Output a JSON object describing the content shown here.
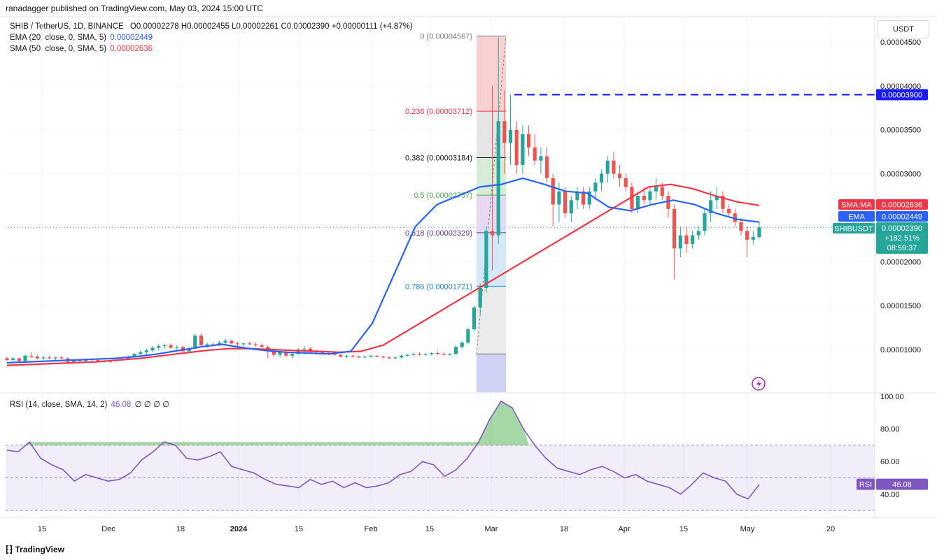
{
  "header": {
    "published": "ranadagger published on TradingView.com, May 03, 2024 15:00 UTC"
  },
  "legend": {
    "symbol": "SHIB / TetherUS, 1D, BINANCE",
    "ohlc": "O0.00002278 H0.00002455 L0.00002261 C0.00002390 +0.00000111 (+4.87%)",
    "ema_label": "EMA (20, close, 0, SMA, 5)",
    "ema_value": "0.00002449",
    "sma_label": "SMA (50, close, 0, SMA, 5)",
    "sma_value": "0.00002636",
    "rsi_label": "RSI (14, close, SMA, 14, 2)",
    "rsi_value": "46.08",
    "rsi_extra": "∅ ∅ ∅ ∅"
  },
  "currency": "USDT",
  "colors": {
    "up": "#26a69a",
    "down": "#ef5350",
    "ema": "#2962ff",
    "sma": "#f23645",
    "rsi": "#7e57c2",
    "resistance": "#1a1aff"
  },
  "price_axis": [
    "0.00004500",
    "0.00004000",
    "0.00003500",
    "0.00003000",
    "0.00002000",
    "0.00001500",
    "0.00001000"
  ],
  "badges": {
    "resistance": "0.00003900",
    "sma_tag": "SMA:MA",
    "sma_val": "0.00002636",
    "ema_tag": "EMA",
    "ema_val": "0.00002449",
    "sym_tag": "SHIBUSDT",
    "sym_val": "0.00002390",
    "sym_change": "+182.51%",
    "sym_time": "08:59:37"
  },
  "fib_levels": [
    {
      "ratio": "0",
      "price": "0.00004567",
      "label": "0 (0.00004567)",
      "color": "#787b86"
    },
    {
      "ratio": "0.236",
      "price": "0.00003712",
      "label": "0.236 (0.00003712)",
      "color": "#f23645"
    },
    {
      "ratio": "0.382",
      "price": "0.00003184",
      "label": "0.382 (0.00003184)",
      "color": "#131722"
    },
    {
      "ratio": "0.5",
      "price": "0.00002757",
      "label": "0.5 (0.00002757)",
      "color": "#4caf50"
    },
    {
      "ratio": "0.618",
      "price": "0.00002329",
      "label": "0.618 (0.00002329)",
      "color": "#5d3a9b"
    },
    {
      "ratio": "0.786",
      "price": "0.00001721",
      "label": "0.786 (0.00001721)",
      "color": "#1e88e5"
    }
  ],
  "rsi_axis": [
    "100.00",
    "80.00",
    "60.00",
    "40.00"
  ],
  "rsi_badge": {
    "tag": "RSI",
    "val": "46.08"
  },
  "x_axis": [
    "15",
    "Dec",
    "18",
    "2024",
    "15",
    "Feb",
    "15",
    "Mar",
    "18",
    "Apr",
    "15",
    "May",
    "20"
  ],
  "footer": {
    "brand": "TradingView"
  },
  "chart_data": {
    "type": "candlestick",
    "title": "SHIB / TetherUS, 1D, BINANCE",
    "y_unit": "USDT",
    "ylim": [
      7.5e-06,
      4.65e-05
    ],
    "candles": [
      [
        9e-06,
        9.2e-06,
        8.7e-06,
        8.8e-06
      ],
      [
        8.8e-06,
        9.2e-06,
        8.7e-06,
        9e-06
      ],
      [
        9e-06,
        9.1e-06,
        8.6e-06,
        8.7e-06
      ],
      [
        8.7e-06,
        9.5e-06,
        8.6e-06,
        9.3e-06
      ],
      [
        9.3e-06,
        9.7e-06,
        9e-06,
        9.2e-06
      ],
      [
        9.2e-06,
        9.4e-06,
        8.9e-06,
        9e-06
      ],
      [
        9e-06,
        9.3e-06,
        8.8e-06,
        9.1e-06
      ],
      [
        9.1e-06,
        9.3e-06,
        8.9e-06,
        9e-06
      ],
      [
        9e-06,
        9.2e-06,
        8.8e-06,
        9.1e-06
      ],
      [
        9.1e-06,
        9.3e-06,
        8.9e-06,
        9e-06
      ],
      [
        9e-06,
        9.1e-06,
        8.5e-06,
        8.6e-06
      ],
      [
        8.6e-06,
        8.9e-06,
        8.5e-06,
        8.8e-06
      ],
      [
        8.8e-06,
        8.9e-06,
        8.6e-06,
        8.7e-06
      ],
      [
        8.7e-06,
        9e-06,
        8.6e-06,
        8.9e-06
      ],
      [
        8.9e-06,
        9e-06,
        8.7e-06,
        8.8e-06
      ],
      [
        8.8e-06,
        8.9e-06,
        8.6e-06,
        8.7e-06
      ],
      [
        8.7e-06,
        8.8e-06,
        8.5e-06,
        8.6e-06
      ],
      [
        8.6e-06,
        8.8e-06,
        8.5e-06,
        8.7e-06
      ],
      [
        8.7e-06,
        8.9e-06,
        8.6e-06,
        8.8e-06
      ],
      [
        8.8e-06,
        9e-06,
        8.7e-06,
        8.9e-06
      ],
      [
        8.9e-06,
        9.3e-06,
        8.8e-06,
        9.2e-06
      ],
      [
        9.2e-06,
        9.6e-06,
        9.1e-06,
        9.5e-06
      ],
      [
        9.5e-06,
        9.9e-06,
        9.3e-06,
        9.7e-06
      ],
      [
        9.7e-06,
        1.01e-05,
        9.5e-06,
        9.9e-06
      ],
      [
        9.9e-06,
        1.04e-05,
        9.7e-06,
        1.02e-05
      ],
      [
        1.02e-05,
        1.06e-05,
        9.9e-06,
        1.04e-05
      ],
      [
        1.04e-05,
        1.06e-05,
        1.01e-05,
        1.05e-05
      ],
      [
        1.05e-05,
        1.07e-05,
        1.01e-05,
        1.02e-05
      ],
      [
        1.02e-05,
        1.05e-05,
        9.9e-06,
        1.03e-05
      ],
      [
        1.03e-05,
        1.05e-05,
        9.7e-06,
        9.8e-06
      ],
      [
        9.8e-06,
        1.02e-05,
        9.7e-06,
        1.01e-05
      ],
      [
        1.01e-05,
        1.18e-05,
        1e-05,
        1.16e-05
      ],
      [
        1.16e-05,
        1.19e-05,
        1.03e-05,
        1.05e-05
      ],
      [
        1.05e-05,
        1.08e-05,
        1.02e-05,
        1.06e-05
      ],
      [
        1.06e-05,
        1.08e-05,
        1.03e-05,
        1.05e-05
      ],
      [
        1.05e-05,
        1.1e-05,
        1.04e-05,
        1.08e-05
      ],
      [
        1.08e-05,
        1.12e-05,
        1.06e-05,
        1.1e-05
      ],
      [
        1.1e-05,
        1.11e-05,
        1.06e-05,
        1.07e-05
      ],
      [
        1.07e-05,
        1.09e-05,
        1.04e-05,
        1.06e-05
      ],
      [
        1.06e-05,
        1.08e-05,
        1.03e-05,
        1.07e-05
      ],
      [
        1.07e-05,
        1.09e-05,
        1.05e-05,
        1.06e-05
      ],
      [
        1.06e-05,
        1.08e-05,
        1.03e-05,
        1.05e-05
      ],
      [
        1.05e-05,
        1.07e-05,
        1.02e-05,
        1.03e-05
      ],
      [
        1.03e-05,
        1.05e-05,
        9e-06,
        9.8e-06
      ],
      [
        9.8e-06,
        1e-05,
        9.2e-06,
        9.4e-06
      ],
      [
        9.4e-06,
        9.8e-06,
        9.1e-06,
        9.7e-06
      ],
      [
        9.7e-06,
        9.9e-06,
        9.2e-06,
        9.3e-06
      ],
      [
        9.3e-06,
        9.6e-06,
        9e-06,
        9.5e-06
      ],
      [
        9.5e-06,
        1.02e-05,
        9.4e-06,
        1e-05
      ],
      [
        1e-05,
        1.04e-05,
        9.7e-06,
        1.01e-05
      ],
      [
        1.01e-05,
        1.03e-05,
        9.6e-06,
        9.8e-06
      ],
      [
        9.8e-06,
        1e-05,
        9.6e-06,
        9.7e-06
      ],
      [
        9.7e-06,
        9.9e-06,
        9.4e-06,
        9.6e-06
      ],
      [
        9.6e-06,
        9.8e-06,
        9.4e-06,
        9.5e-06
      ],
      [
        9.5e-06,
        9.7e-06,
        9.3e-06,
        9.4e-06
      ],
      [
        9.4e-06,
        9.5e-06,
        9.1e-06,
        9.2e-06
      ],
      [
        9.2e-06,
        9.4e-06,
        9e-06,
        9.3e-06
      ],
      [
        9.3e-06,
        9.4e-06,
        9.1e-06,
        9.2e-06
      ],
      [
        9.2e-06,
        9.3e-06,
        9e-06,
        9.1e-06
      ],
      [
        9.1e-06,
        9.3e-06,
        9e-06,
        9.2e-06
      ],
      [
        9.2e-06,
        9.4e-06,
        9.1e-06,
        9.3e-06
      ],
      [
        9.3e-06,
        9.4e-06,
        9.1e-06,
        9.2e-06
      ],
      [
        9.2e-06,
        9.3e-06,
        9e-06,
        9.1e-06
      ],
      [
        9.1e-06,
        9.2e-06,
        8.9e-06,
        9e-06
      ],
      [
        9e-06,
        9.2e-06,
        8.9e-06,
        9.1e-06
      ],
      [
        9.1e-06,
        9.4e-06,
        9e-06,
        9.3e-06
      ],
      [
        9.3e-06,
        9.5e-06,
        9.2e-06,
        9.4e-06
      ],
      [
        9.4e-06,
        9.6e-06,
        9.3e-06,
        9.5e-06
      ],
      [
        9.5e-06,
        9.7e-06,
        9.3e-06,
        9.4e-06
      ],
      [
        9.4e-06,
        9.6e-06,
        9.3e-06,
        9.5e-06
      ],
      [
        9.5e-06,
        9.7e-06,
        9.3e-06,
        9.6e-06
      ],
      [
        9.6e-06,
        9.8e-06,
        9.4e-06,
        9.5e-06
      ],
      [
        9.5e-06,
        9.7e-06,
        9.3e-06,
        9.4e-06
      ],
      [
        9.4e-06,
        9.6e-06,
        9.3e-06,
        9.5e-06
      ],
      [
        9.5e-06,
        1.05e-05,
        9.4e-06,
        1.03e-05
      ],
      [
        1.03e-05,
        1.1e-05,
        1.01e-05,
        1.08e-05
      ],
      [
        1.08e-05,
        1.25e-05,
        1.06e-05,
        1.23e-05
      ],
      [
        1.23e-05,
        1.5e-05,
        1.2e-05,
        1.48e-05
      ],
      [
        1.48e-05,
        1.75e-05,
        1.4e-05,
        1.7e-05
      ],
      [
        1.7e-05,
        2.4e-05,
        1.65e-05,
        2.35e-05
      ],
      [
        2.35e-05,
        4e-05,
        1.9e-05,
        2.3e-05
      ],
      [
        2.3e-05,
        4.55e-05,
        2.2e-05,
        3.6e-05
      ],
      [
        3.6e-05,
        3.95e-05,
        3e-05,
        3.35e-05
      ],
      [
        3.35e-05,
        3.9e-05,
        3.1e-05,
        3.5e-05
      ],
      [
        3.5e-05,
        3.6e-05,
        3e-05,
        3.1e-05
      ],
      [
        3.1e-05,
        3.55e-05,
        3e-05,
        3.45e-05
      ],
      [
        3.45e-05,
        3.55e-05,
        3.2e-05,
        3.3e-05
      ],
      [
        3.3e-05,
        3.45e-05,
        3.1e-05,
        3.15e-05
      ],
      [
        3.15e-05,
        3.3e-05,
        3e-05,
        3.2e-05
      ],
      [
        3.2e-05,
        3.3e-05,
        2.9e-05,
        2.95e-05
      ],
      [
        2.95e-05,
        3e-05,
        2.4e-05,
        2.65e-05
      ],
      [
        2.65e-05,
        2.9e-05,
        2.45e-05,
        2.8e-05
      ],
      [
        2.8e-05,
        2.85e-05,
        2.5e-05,
        2.55e-05
      ],
      [
        2.55e-05,
        2.75e-05,
        2.45e-05,
        2.7e-05
      ],
      [
        2.7e-05,
        2.85e-05,
        2.6e-05,
        2.8e-05
      ],
      [
        2.8e-05,
        2.85e-05,
        2.6e-05,
        2.65e-05
      ],
      [
        2.65e-05,
        2.85e-05,
        2.6e-05,
        2.8e-05
      ],
      [
        2.8e-05,
        2.95e-05,
        2.7e-05,
        2.9e-05
      ],
      [
        2.9e-05,
        3.05e-05,
        2.8e-05,
        3e-05
      ],
      [
        3e-05,
        3.2e-05,
        2.9e-05,
        3.15e-05
      ],
      [
        3.15e-05,
        3.25e-05,
        2.95e-05,
        3e-05
      ],
      [
        3e-05,
        3.1e-05,
        2.85e-05,
        2.95e-05
      ],
      [
        2.95e-05,
        3e-05,
        2.8e-05,
        2.85e-05
      ],
      [
        2.85e-05,
        2.9e-05,
        2.55e-05,
        2.6e-05
      ],
      [
        2.6e-05,
        2.8e-05,
        2.55e-05,
        2.75e-05
      ],
      [
        2.75e-05,
        2.85e-05,
        2.65e-05,
        2.7e-05
      ],
      [
        2.7e-05,
        2.85e-05,
        2.65e-05,
        2.8e-05
      ],
      [
        2.8e-05,
        2.95e-05,
        2.7e-05,
        2.85e-05
      ],
      [
        2.85e-05,
        2.9e-05,
        2.7e-05,
        2.75e-05
      ],
      [
        2.75e-05,
        2.8e-05,
        2.5e-05,
        2.6e-05
      ],
      [
        2.6e-05,
        2.65e-05,
        1.8e-05,
        2.15e-05
      ],
      [
        2.15e-05,
        2.4e-05,
        2.05e-05,
        2.3e-05
      ],
      [
        2.3e-05,
        2.4e-05,
        2.1e-05,
        2.2e-05
      ],
      [
        2.2e-05,
        2.35e-05,
        2.15e-05,
        2.3e-05
      ],
      [
        2.3e-05,
        2.4e-05,
        2.25e-05,
        2.35e-05
      ],
      [
        2.35e-05,
        2.6e-05,
        2.3e-05,
        2.55e-05
      ],
      [
        2.55e-05,
        2.8e-05,
        2.45e-05,
        2.7e-05
      ],
      [
        2.7e-05,
        2.85e-05,
        2.6e-05,
        2.75e-05
      ],
      [
        2.75e-05,
        2.8e-05,
        2.55e-05,
        2.6e-05
      ],
      [
        2.6e-05,
        2.65e-05,
        2.5e-05,
        2.55e-05
      ],
      [
        2.55e-05,
        2.6e-05,
        2.4e-05,
        2.45e-05
      ],
      [
        2.45e-05,
        2.5e-05,
        2.3e-05,
        2.35e-05
      ],
      [
        2.35e-05,
        2.4e-05,
        2.05e-05,
        2.25e-05
      ],
      [
        2.25e-05,
        2.35e-05,
        2.2e-05,
        2.28e-05
      ],
      [
        2.28e-05,
        2.46e-05,
        2.26e-05,
        2.39e-05
      ]
    ],
    "ema20": [
      8.5e-06,
      8.6e-06,
      8.7e-06,
      8.8e-06,
      8.9e-06,
      9e-06,
      9.2e-06,
      9.5e-06,
      9.9e-06,
      1.03e-05,
      1.06e-05,
      1.02e-05,
      9.9e-06,
      9.7e-06,
      9.6e-06,
      9.5e-06,
      9.8e-06,
      1.3e-05,
      1.85e-05,
      2.4e-05,
      2.65e-05,
      2.75e-05,
      2.85e-05,
      2.88e-05,
      2.95e-05,
      2.88e-05,
      2.8e-05,
      2.78e-05,
      2.62e-05,
      2.58e-05,
      2.65e-05,
      2.7e-05,
      2.65e-05,
      2.55e-05,
      2.48e-05,
      2.45e-05
    ],
    "sma50": [
      8.2e-06,
      8.3e-06,
      8.4e-06,
      8.5e-06,
      8.6e-06,
      8.8e-06,
      9e-06,
      9.3e-06,
      9.6e-06,
      9.9e-06,
      1.01e-05,
      1.01e-05,
      1e-05,
      9.9e-06,
      9.8e-06,
      9.7e-06,
      9.8e-06,
      1.05e-05,
      1.2e-05,
      1.35e-05,
      1.5e-05,
      1.65e-05,
      1.8e-05,
      1.95e-05,
      2.1e-05,
      2.25e-05,
      2.4e-05,
      2.55e-05,
      2.7e-05,
      2.85e-05,
      2.88e-05,
      2.83e-05,
      2.75e-05,
      2.68e-05,
      2.64e-05
    ],
    "rsi": [
      67,
      66,
      72,
      62,
      58,
      55,
      48,
      52,
      50,
      48,
      49,
      53,
      61,
      66,
      72,
      70,
      62,
      61,
      63,
      66,
      57,
      55,
      53,
      49,
      46,
      45,
      44,
      49,
      46,
      48,
      44,
      47,
      44,
      45,
      47,
      52,
      54,
      60,
      58,
      51,
      55,
      62,
      72,
      86,
      97,
      93,
      80,
      70,
      62,
      56,
      54,
      52,
      55,
      57,
      54,
      50,
      52,
      48,
      46,
      44,
      40,
      46,
      53,
      50,
      48,
      40,
      37,
      46
    ],
    "rsi_ylim": [
      25,
      100
    ]
  }
}
